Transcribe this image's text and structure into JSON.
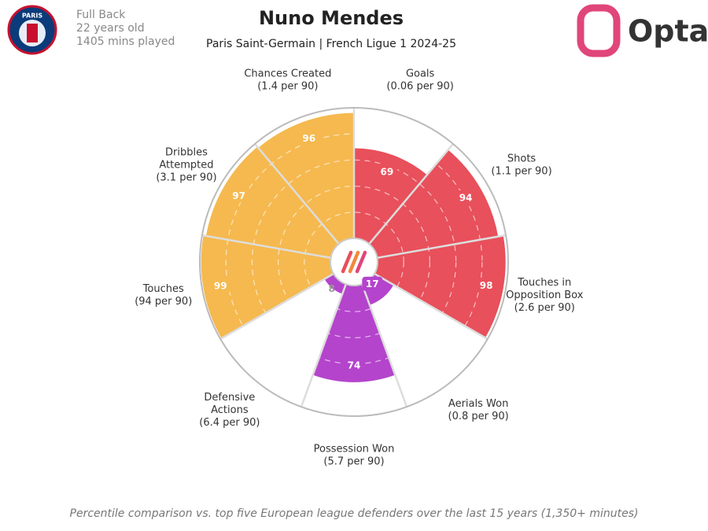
{
  "header": {
    "position": "Full Back",
    "age": "22 years old",
    "minutes": "1405 mins played",
    "club_logo_text": "PARIS",
    "brand": "Opta"
  },
  "chart_data": {
    "type": "pizza",
    "title": "Nuno Mendes",
    "subtitle": "Paris Saint-Germain | French Ligue 1 2024-25",
    "categories": [
      [
        "Goals"
      ],
      [
        "Shots"
      ],
      [
        "Touches in",
        "Opposition Box"
      ],
      [
        "Aerials Won"
      ],
      [
        "Possession Won"
      ],
      [
        "Defensive",
        "Actions"
      ],
      [
        "Touches"
      ],
      [
        "Dribbles",
        "Attempted"
      ],
      [
        "Chances Created"
      ]
    ],
    "per_90": [
      "(0.06 per 90)",
      "(1.1 per 90)",
      "(2.6 per 90)",
      "(0.8 per 90)",
      "(5.7 per 90)",
      "(6.4 per 90)",
      "(94 per 90)",
      "(3.1 per 90)",
      "(1.4 per 90)"
    ],
    "values": [
      69,
      94,
      98,
      17,
      74,
      8,
      99,
      97,
      96
    ],
    "colors": [
      "#e8505b",
      "#e8505b",
      "#e8505b",
      "#b444cc",
      "#b444cc",
      "#b444cc",
      "#f5b94f",
      "#f5b94f",
      "#f5b94f"
    ],
    "ylim": [
      0,
      100
    ],
    "yticks": [
      20,
      40,
      60,
      80
    ],
    "grid": true,
    "footnote": "Percentile comparison vs. top five European league defenders over the last 15 years (1,350+ minutes)"
  }
}
